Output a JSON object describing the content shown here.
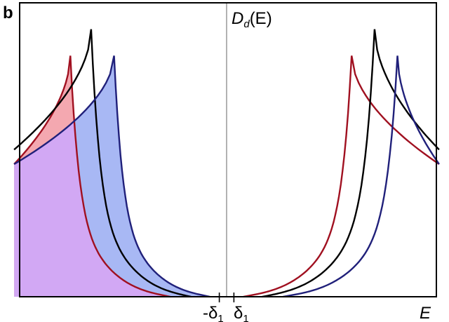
{
  "panel_label": "b",
  "ylabel_main": "D",
  "ylabel_sub": "d",
  "ylabel_arg": "(E)",
  "xlabel": "E",
  "tick_neg_main": "-δ",
  "tick_neg_sub": "1",
  "tick_pos_main": "δ",
  "tick_pos_sub": "1",
  "colors": {
    "red": "#a01020",
    "black": "#000000",
    "blue": "#20207a",
    "red_fill": "#f4a8b0",
    "blue_fill": "#a8b8f4",
    "overlap_fill": "#d2a8f4",
    "frame": "#000000",
    "center_line": "#808080"
  },
  "chart_data": {
    "type": "line",
    "title": "",
    "xlabel": "E",
    "ylabel": "D_d(E)",
    "xticks": [
      "-δ1",
      "δ1"
    ],
    "grid": false,
    "legend": "none",
    "note_shading": "Occupied states (E < 0) of the red and blue curves are shaded; their overlap appears purple.",
    "series": [
      {
        "color": "red",
        "edge_neg": 0.93,
        "peak_E": 0.75,
        "peak_height": 0.82,
        "filled_below_zero": true
      },
      {
        "color": "black",
        "edge_neg": 0.83,
        "peak_E": 0.65,
        "peak_height": 0.91,
        "filled_below_zero": false
      },
      {
        "color": "blue",
        "edge_neg": 0.73,
        "peak_E": 0.54,
        "peak_height": 0.82,
        "filled_below_zero": true
      }
    ]
  }
}
